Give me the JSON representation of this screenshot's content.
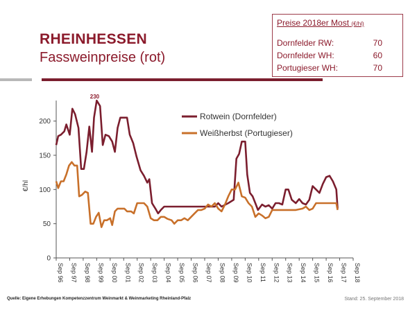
{
  "header": {
    "title": "RHEINHESSEN",
    "subtitle": "Fassweinpreise (rot)"
  },
  "price_box": {
    "title": "Preise 2018er Most",
    "unit": "(€/hl)",
    "rows": [
      {
        "label": "Dornfelder RW:",
        "value": "70"
      },
      {
        "label": "Dornfelder WH:",
        "value": "60"
      },
      {
        "label": "Portugieser WH:",
        "value": "70"
      }
    ]
  },
  "footer": {
    "source": "Quelle: Eigene Erhebungen Kompetenzzentrum Weinmarkt & Weinmarketing Rheinland-Pfalz",
    "date": "Stand: 25. September 2018"
  },
  "colors": {
    "rotwein": "#7b1e2e",
    "weissherbst": "#c8702a",
    "title": "#8b1a2b"
  },
  "chart_data": {
    "type": "line",
    "ylabel": "€/hl",
    "ylim": [
      0,
      230
    ],
    "yticks": [
      0,
      50,
      100,
      150,
      200
    ],
    "xlim": [
      1996.75,
      2018.75
    ],
    "xtick_labels": [
      "Sep 96",
      "Sep 97",
      "Sep 98",
      "Sep 99",
      "Sep 00",
      "Sep 01",
      "Sep 02",
      "Sep 03",
      "Sep 04",
      "Sep 05",
      "Sep 06",
      "Sep 07",
      "Sep 08",
      "Sep 09",
      "Sep 10",
      "Sep 11",
      "Sep 12",
      "Sep 13",
      "Sep 14",
      "Sep 15",
      "Sep 16",
      "Sep 17",
      "Sep 18"
    ],
    "legend_position": "top-right",
    "annotations": [
      {
        "text": "230",
        "x": 1999.6,
        "y": 230
      }
    ],
    "series": [
      {
        "name": "Rotwein (Dornfelder)",
        "points": [
          [
            1996.75,
            165
          ],
          [
            1996.9,
            178
          ],
          [
            1997.1,
            180
          ],
          [
            1997.35,
            185
          ],
          [
            1997.5,
            195
          ],
          [
            1997.75,
            180
          ],
          [
            1997.95,
            218
          ],
          [
            1998.15,
            210
          ],
          [
            1998.4,
            190
          ],
          [
            1998.6,
            130
          ],
          [
            1998.8,
            130
          ],
          [
            1999.0,
            155
          ],
          [
            1999.2,
            192
          ],
          [
            1999.4,
            155
          ],
          [
            1999.55,
            205
          ],
          [
            1999.75,
            230
          ],
          [
            2000.0,
            222
          ],
          [
            2000.2,
            165
          ],
          [
            2000.4,
            180
          ],
          [
            2000.65,
            178
          ],
          [
            2000.9,
            170
          ],
          [
            2001.1,
            155
          ],
          [
            2001.3,
            190
          ],
          [
            2001.5,
            205
          ],
          [
            2001.75,
            205
          ],
          [
            2002.0,
            205
          ],
          [
            2002.2,
            180
          ],
          [
            2002.45,
            168
          ],
          [
            2002.7,
            148
          ],
          [
            2003.0,
            128
          ],
          [
            2003.25,
            120
          ],
          [
            2003.5,
            110
          ],
          [
            2003.65,
            115
          ],
          [
            2003.85,
            80
          ],
          [
            2004.1,
            72
          ],
          [
            2004.3,
            65
          ],
          [
            2004.5,
            70
          ],
          [
            2004.75,
            75
          ],
          [
            2005.0,
            75
          ],
          [
            2005.5,
            75
          ],
          [
            2006.0,
            75
          ],
          [
            2006.5,
            75
          ],
          [
            2007.0,
            75
          ],
          [
            2007.5,
            75
          ],
          [
            2008.0,
            75
          ],
          [
            2008.5,
            75
          ],
          [
            2008.75,
            80
          ],
          [
            2009.0,
            75
          ],
          [
            2009.5,
            80
          ],
          [
            2009.9,
            85
          ],
          [
            2010.1,
            145
          ],
          [
            2010.3,
            152
          ],
          [
            2010.5,
            170
          ],
          [
            2010.75,
            170
          ],
          [
            2010.9,
            122
          ],
          [
            2011.1,
            95
          ],
          [
            2011.3,
            90
          ],
          [
            2011.5,
            80
          ],
          [
            2011.7,
            70
          ],
          [
            2012.0,
            78
          ],
          [
            2012.25,
            75
          ],
          [
            2012.5,
            77
          ],
          [
            2012.75,
            72
          ],
          [
            2013.0,
            80
          ],
          [
            2013.25,
            80
          ],
          [
            2013.5,
            78
          ],
          [
            2013.75,
            100
          ],
          [
            2013.95,
            100
          ],
          [
            2014.2,
            85
          ],
          [
            2014.5,
            80
          ],
          [
            2014.75,
            86
          ],
          [
            2015.0,
            80
          ],
          [
            2015.25,
            78
          ],
          [
            2015.5,
            85
          ],
          [
            2015.75,
            105
          ],
          [
            2016.0,
            100
          ],
          [
            2016.25,
            95
          ],
          [
            2016.5,
            108
          ],
          [
            2016.75,
            118
          ],
          [
            2017.0,
            120
          ],
          [
            2017.25,
            112
          ],
          [
            2017.5,
            100
          ],
          [
            2017.6,
            72
          ]
        ]
      },
      {
        "name": "Weißherbst (Portugieser)",
        "points": [
          [
            1996.75,
            112
          ],
          [
            1996.9,
            102
          ],
          [
            1997.1,
            112
          ],
          [
            1997.3,
            112
          ],
          [
            1997.5,
            122
          ],
          [
            1997.7,
            135
          ],
          [
            1997.9,
            140
          ],
          [
            1998.1,
            135
          ],
          [
            1998.3,
            135
          ],
          [
            1998.45,
            90
          ],
          [
            1998.65,
            92
          ],
          [
            1998.9,
            97
          ],
          [
            1999.1,
            95
          ],
          [
            1999.3,
            50
          ],
          [
            1999.5,
            50
          ],
          [
            1999.7,
            60
          ],
          [
            1999.9,
            66
          ],
          [
            2000.1,
            45
          ],
          [
            2000.3,
            55
          ],
          [
            2000.5,
            55
          ],
          [
            2000.75,
            58
          ],
          [
            2000.9,
            48
          ],
          [
            2001.1,
            68
          ],
          [
            2001.3,
            72
          ],
          [
            2001.6,
            72
          ],
          [
            2001.8,
            72
          ],
          [
            2002.0,
            68
          ],
          [
            2002.3,
            68
          ],
          [
            2002.5,
            65
          ],
          [
            2002.75,
            80
          ],
          [
            2003.0,
            80
          ],
          [
            2003.25,
            80
          ],
          [
            2003.5,
            75
          ],
          [
            2003.75,
            58
          ],
          [
            2004.0,
            55
          ],
          [
            2004.25,
            55
          ],
          [
            2004.5,
            60
          ],
          [
            2004.75,
            60
          ],
          [
            2005.0,
            57
          ],
          [
            2005.3,
            55
          ],
          [
            2005.5,
            50
          ],
          [
            2005.75,
            55
          ],
          [
            2006.0,
            55
          ],
          [
            2006.25,
            58
          ],
          [
            2006.5,
            55
          ],
          [
            2006.75,
            60
          ],
          [
            2007.0,
            65
          ],
          [
            2007.25,
            70
          ],
          [
            2007.5,
            70
          ],
          [
            2007.75,
            72
          ],
          [
            2008.0,
            78
          ],
          [
            2008.25,
            75
          ],
          [
            2008.5,
            80
          ],
          [
            2008.75,
            72
          ],
          [
            2009.0,
            68
          ],
          [
            2009.25,
            78
          ],
          [
            2009.5,
            90
          ],
          [
            2009.75,
            100
          ],
          [
            2010.0,
            100
          ],
          [
            2010.25,
            110
          ],
          [
            2010.5,
            90
          ],
          [
            2010.75,
            88
          ],
          [
            2011.0,
            80
          ],
          [
            2011.25,
            75
          ],
          [
            2011.5,
            60
          ],
          [
            2011.75,
            65
          ],
          [
            2012.0,
            62
          ],
          [
            2012.25,
            58
          ],
          [
            2012.5,
            60
          ],
          [
            2012.75,
            70
          ],
          [
            2013.0,
            70
          ],
          [
            2013.5,
            70
          ],
          [
            2014.0,
            70
          ],
          [
            2014.5,
            70
          ],
          [
            2015.0,
            72
          ],
          [
            2015.25,
            75
          ],
          [
            2015.5,
            70
          ],
          [
            2015.75,
            72
          ],
          [
            2016.0,
            80
          ],
          [
            2016.5,
            80
          ],
          [
            2017.0,
            80
          ],
          [
            2017.5,
            80
          ],
          [
            2017.6,
            70
          ]
        ]
      }
    ]
  }
}
